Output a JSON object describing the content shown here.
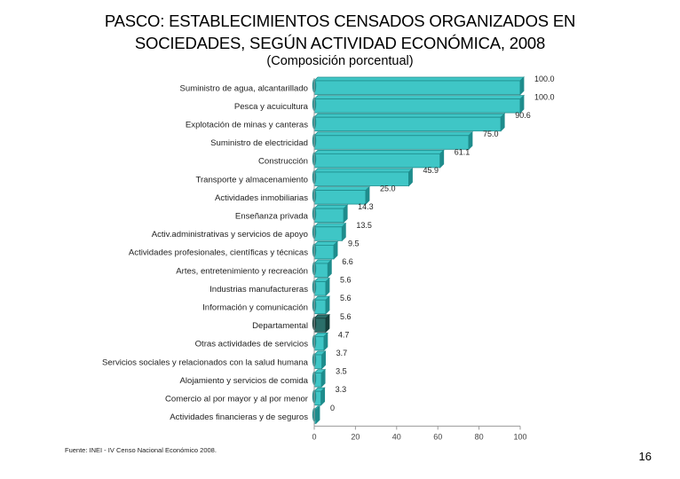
{
  "title_line1": "PASCO: ESTABLECIMIENTOS CENSADOS ORGANIZADOS EN",
  "title_line2": "SOCIEDADES, SEGÚN ACTIVIDAD ECONÓMICA, 2008",
  "subtitle": "(Composición porcentual)",
  "source": "Fuente: INEI - IV Censo Nacional Económico 2008.",
  "page_number": "16",
  "colors": {
    "bar": "#3fc6c6",
    "bar_dark": "#1e8c8c",
    "bar_highlight": "#2b6f6a",
    "bar_highlight_dark": "#163f3b"
  },
  "chart_data": {
    "type": "bar",
    "orientation": "horizontal",
    "categories": [
      "Suministro de agua, alcantarillado",
      "Pesca y acuicultura",
      "Explotación de minas y canteras",
      "Suministro de electricidad",
      "Construcción",
      "Transporte y almacenamiento",
      "Actividades inmobiliarias",
      "Enseñanza privada",
      "Activ.administrativas y servicios de apoyo",
      "Actividades profesionales, científicas y técnicas",
      "Artes, entretenimiento y recreación",
      "Industrias manufactureras",
      "Información y comunicación",
      "Departamental",
      "Otras actividades de servicios",
      "Servicios sociales y relacionados con la salud humana",
      "Alojamiento y servicios de comida",
      "Comercio al por mayor y al por menor",
      "Actividades financieras y de seguros"
    ],
    "values": [
      100.0,
      100.0,
      90.6,
      75.0,
      61.1,
      45.9,
      25.0,
      14.3,
      13.5,
      9.5,
      6.6,
      5.6,
      5.6,
      5.6,
      4.7,
      3.7,
      3.5,
      3.3,
      0
    ],
    "value_labels": [
      "100.0",
      "100.0",
      "90.6",
      "75.0",
      "61.1",
      "45.9",
      "25.0",
      "14.3",
      "13.5",
      "9.5",
      "6.6",
      "5.6",
      "5.6",
      "5.6",
      "4.7",
      "3.7",
      "3.5",
      "3.3",
      "0"
    ],
    "highlight_index": 13,
    "xlim": [
      0,
      100
    ],
    "xticks": [
      0,
      20,
      40,
      60,
      80,
      100
    ],
    "grid": false
  }
}
